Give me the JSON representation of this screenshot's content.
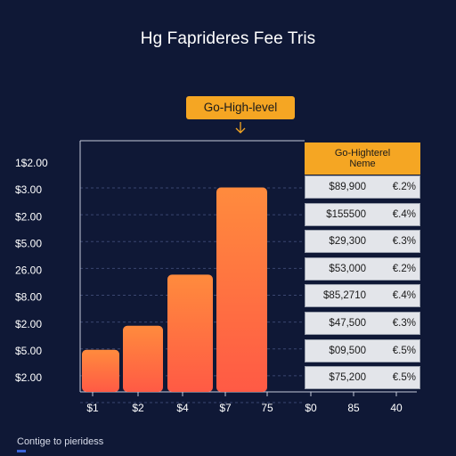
{
  "title": "Hg Faprideres Fee Tris",
  "callout": {
    "label": "Go-High-level",
    "icon": "arrow-down-icon"
  },
  "footer": {
    "text": "Contige to pieridess"
  },
  "colors": {
    "background": "#0f1836",
    "accent": "#f5a623",
    "bar_top": "#ff8b3d",
    "bar_bottom": "#ff5a45",
    "panel_row": "#e3e5ea"
  },
  "chart_data": {
    "type": "bar",
    "title": "Hg Faprideres Fee Tris",
    "y_tick_labels": [
      "1$2.00",
      "$3.00",
      "$2.00",
      "$5.00",
      "26.00",
      "$8.00",
      "$2.00",
      "$5.00",
      "$2.00"
    ],
    "x_tick_labels": [
      "$1",
      "$2",
      "$4",
      "$7",
      "75",
      "$0",
      "85",
      "40"
    ],
    "categories": [
      "$1",
      "$2",
      "$4",
      "$7"
    ],
    "values": [
      1.4,
      2.2,
      3.9,
      6.8
    ],
    "ylim": [
      0,
      8
    ],
    "grid": true,
    "annotation": "Go-High-level",
    "side_panel": {
      "header": [
        "Go-Highterel",
        "Neme"
      ],
      "rows": [
        [
          "$89,900",
          "€.2%"
        ],
        [
          "$155500",
          "€.4%"
        ],
        [
          "$29,300",
          "€.3%"
        ],
        [
          "$53,000",
          "€.2%"
        ],
        [
          "$85,2710",
          "€.4%"
        ],
        [
          "$47,500",
          "€.3%"
        ],
        [
          "$09,500",
          "€.5%"
        ],
        [
          "$75,200",
          "€.5%"
        ]
      ]
    }
  }
}
